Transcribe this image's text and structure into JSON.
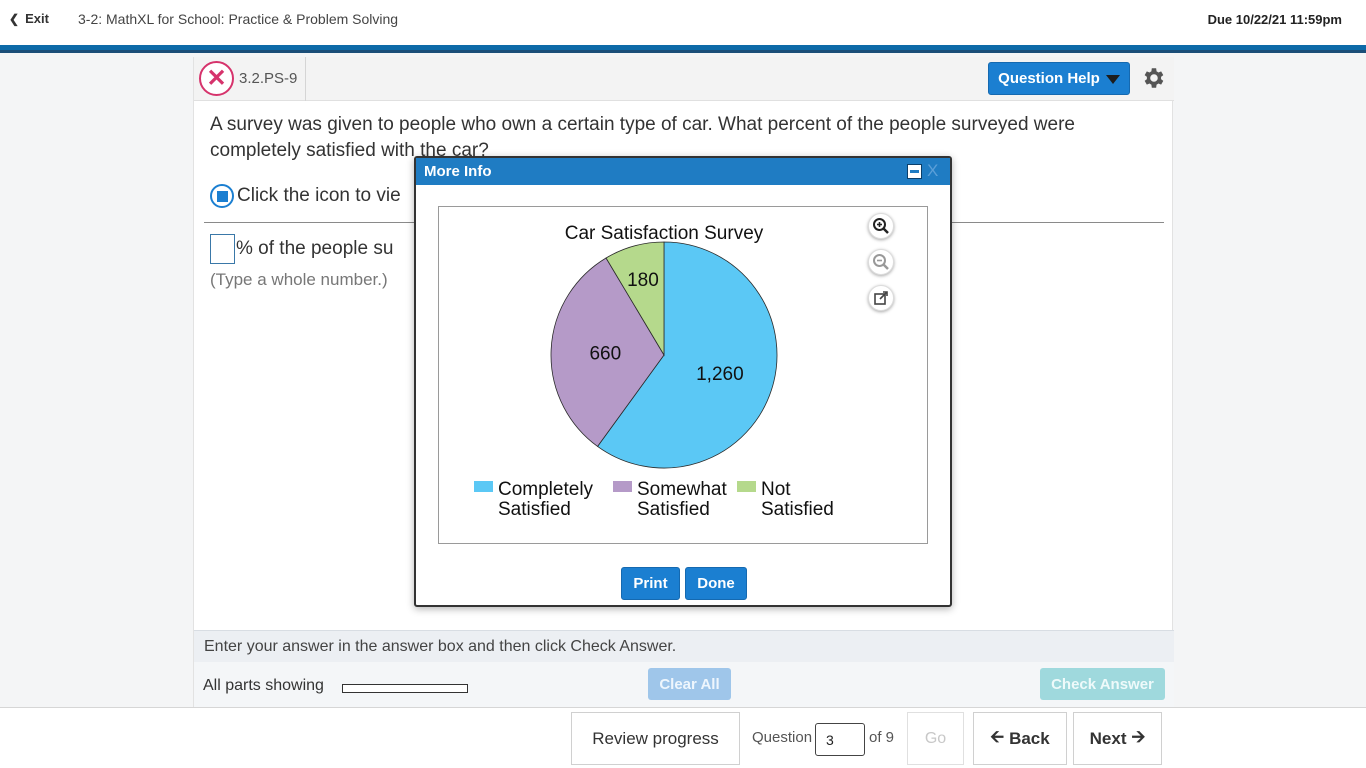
{
  "header": {
    "exit_label": "Exit",
    "assignment_title": "3-2: MathXL for School: Practice & Problem Solving",
    "due": "Due 10/22/21 11:59pm"
  },
  "question": {
    "id": "3.2.PS-9",
    "help_label": "Question Help",
    "text": "A survey was given to people who own a certain type of car. What percent of the people surveyed were completely satisfied with the car?",
    "click_text": "Click the icon to vie",
    "answer_suffix": "% of the people su",
    "answer_value": "",
    "hint": "(Type a whole number.)"
  },
  "status": {
    "instruction": "Enter your answer in the answer box and then click Check Answer.",
    "parts_label": "All parts showing",
    "progress": 0.0,
    "clear_all": "Clear All",
    "check_answer": "Check Answer"
  },
  "nav": {
    "review": "Review progress",
    "question_label": "Question",
    "question_number": "3",
    "of_total": "of 9",
    "go": "Go",
    "back": "Back",
    "next": "Next"
  },
  "modal": {
    "title": "More Info",
    "close": "X",
    "print": "Print",
    "done": "Done"
  },
  "chart_data": {
    "type": "pie",
    "title": "Car Satisfaction Survey",
    "categories": [
      "Completely Satisfied",
      "Somewhat Satisfied",
      "Not Satisfied"
    ],
    "values": [
      1260,
      660,
      180
    ],
    "labels": [
      "1,260",
      "660",
      "180"
    ],
    "legend": [
      {
        "lines": [
          "Completely",
          "Satisfied"
        ],
        "color": "#5bc8f5"
      },
      {
        "lines": [
          "Somewhat",
          "Satisfied"
        ],
        "color": "#b59ac8"
      },
      {
        "lines": [
          "Not",
          "Satisfied"
        ],
        "color": "#b5d98c"
      }
    ],
    "colors": [
      "#5bc8f5",
      "#b59ac8",
      "#b5d98c"
    ],
    "legend_position": "bottom"
  }
}
